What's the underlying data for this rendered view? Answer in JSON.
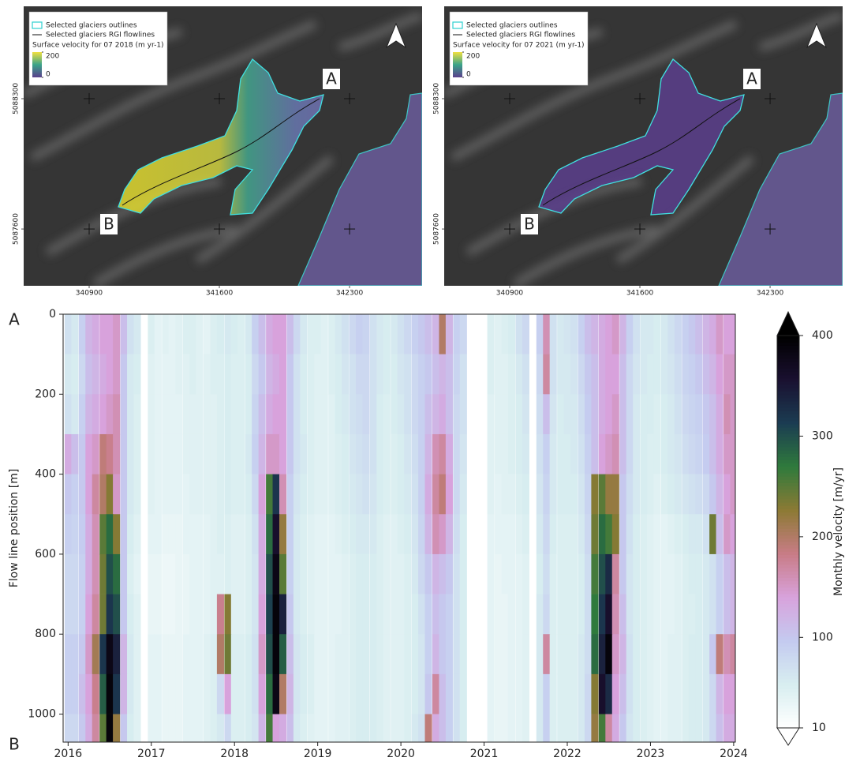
{
  "maps": [
    {
      "legend": [
        "Selected glaciers outlines",
        "Selected glaciers RGI flowlines"
      ],
      "scale_title": "Surface velocity for 07 2018 (m yr-1)",
      "scale_lim": [
        0,
        200
      ],
      "points": [
        "A",
        "B"
      ],
      "xlim": [
        340548,
        342690
      ],
      "ylim": [
        5087295,
        5088796
      ],
      "xticks": [
        340900,
        341600,
        342300
      ],
      "yticks": [
        5088300,
        5087600
      ]
    },
    {
      "legend": [
        "Selected glaciers outlines",
        "Selected glaciers RGI flowlines"
      ],
      "scale_title": "Surface velocity for 07 2021 (m yr-1)",
      "scale_lim": [
        0,
        200
      ],
      "points": [
        "A",
        "B"
      ],
      "xlim": [
        340548,
        342690
      ],
      "ylim": [
        5087295,
        5088796
      ],
      "xticks": [
        340900,
        341600,
        342300
      ],
      "yticks": [
        5088300,
        5087600
      ]
    }
  ],
  "chart_data": {
    "type": "heatmap",
    "ylabel": "Flow line position [m]",
    "annotations": [
      "A",
      "B"
    ],
    "xlim": [
      2015.94,
      2024.02
    ],
    "ylim": [
      0,
      1070
    ],
    "invert_y": true,
    "xticks": [
      2016,
      2017,
      2018,
      2019,
      2020,
      2021,
      2022,
      2023,
      2024
    ],
    "yticks": [
      0,
      200,
      400,
      600,
      800,
      1000
    ],
    "x": [
      2016,
      2016.08,
      2016.17,
      2016.25,
      2016.33,
      2016.42,
      2016.5,
      2016.58,
      2016.67,
      2016.75,
      2016.83,
      2016.92,
      2017,
      2017.08,
      2017.17,
      2017.25,
      2017.33,
      2017.42,
      2017.5,
      2017.58,
      2017.67,
      2017.75,
      2017.83,
      2017.92,
      2018,
      2018.08,
      2018.17,
      2018.25,
      2018.33,
      2018.42,
      2018.5,
      2018.58,
      2018.67,
      2018.75,
      2018.83,
      2018.92,
      2019,
      2019.08,
      2019.17,
      2019.25,
      2019.33,
      2019.42,
      2019.5,
      2019.58,
      2019.67,
      2019.75,
      2019.83,
      2019.92,
      2020,
      2020.08,
      2020.17,
      2020.25,
      2020.33,
      2020.42,
      2020.5,
      2020.58,
      2020.67,
      2020.75,
      2020.83,
      2020.92,
      2021,
      2021.08,
      2021.17,
      2021.25,
      2021.33,
      2021.42,
      2021.5,
      2021.58,
      2021.67,
      2021.75,
      2021.83,
      2021.92,
      2022,
      2022.08,
      2022.17,
      2022.25,
      2022.33,
      2022.42,
      2022.5,
      2022.58,
      2022.67,
      2022.75,
      2022.83,
      2022.92,
      2023,
      2023.08,
      2023.17,
      2023.25,
      2023.33,
      2023.42,
      2023.5,
      2023.58,
      2023.67,
      2023.75,
      2023.83,
      2023.92,
      2024,
      2024.08
    ],
    "y": [
      50,
      150,
      250,
      350,
      450,
      550,
      650,
      750,
      850,
      950,
      1050
    ],
    "z": [
      [
        70,
        60,
        90,
        120,
        130,
        140,
        140,
        150,
        110,
        70,
        60,
        null,
        50,
        40,
        45,
        40,
        45,
        50,
        50,
        45,
        40,
        50,
        55,
        60,
        55,
        50,
        60,
        90,
        110,
        130,
        140,
        140,
        110,
        80,
        60,
        50,
        50,
        45,
        50,
        60,
        70,
        80,
        90,
        85,
        70,
        60,
        55,
        60,
        70,
        80,
        90,
        100,
        110,
        120,
        200,
        120,
        90,
        80,
        null,
        null,
        null,
        50,
        45,
        50,
        55,
        70,
        80,
        null,
        90,
        160,
        70,
        60,
        65,
        70,
        90,
        110,
        120,
        130,
        140,
        150,
        120,
        90,
        70,
        60,
        60,
        55,
        60,
        70,
        80,
        90,
        100,
        110,
        120,
        130,
        150,
        140,
        140,
        120
      ],
      [
        60,
        55,
        80,
        110,
        120,
        130,
        140,
        150,
        100,
        60,
        55,
        null,
        45,
        40,
        40,
        40,
        45,
        45,
        50,
        45,
        45,
        50,
        50,
        55,
        50,
        50,
        55,
        80,
        100,
        120,
        130,
        140,
        100,
        70,
        55,
        50,
        45,
        45,
        50,
        55,
        65,
        70,
        80,
        80,
        70,
        60,
        55,
        55,
        65,
        70,
        80,
        90,
        100,
        110,
        120,
        110,
        85,
        70,
        null,
        null,
        null,
        50,
        45,
        45,
        50,
        60,
        70,
        null,
        80,
        170,
        70,
        60,
        60,
        65,
        80,
        100,
        110,
        130,
        140,
        140,
        110,
        80,
        65,
        60,
        55,
        55,
        60,
        65,
        75,
        85,
        90,
        100,
        110,
        120,
        140,
        150,
        150,
        130
      ],
      [
        70,
        60,
        90,
        120,
        130,
        140,
        150,
        160,
        100,
        60,
        50,
        null,
        45,
        40,
        40,
        40,
        40,
        45,
        45,
        45,
        45,
        45,
        50,
        55,
        50,
        50,
        55,
        85,
        110,
        130,
        140,
        140,
        100,
        70,
        55,
        50,
        45,
        45,
        45,
        55,
        60,
        70,
        75,
        80,
        70,
        55,
        50,
        55,
        60,
        70,
        80,
        90,
        110,
        120,
        130,
        110,
        80,
        70,
        null,
        null,
        null,
        45,
        45,
        45,
        50,
        55,
        65,
        null,
        75,
        110,
        65,
        55,
        60,
        60,
        75,
        95,
        110,
        130,
        140,
        150,
        110,
        80,
        60,
        55,
        55,
        50,
        55,
        60,
        70,
        80,
        85,
        90,
        100,
        110,
        130,
        160,
        150,
        140
      ],
      [
        130,
        110,
        100,
        140,
        150,
        190,
        180,
        160,
        100,
        60,
        50,
        null,
        45,
        40,
        40,
        40,
        40,
        45,
        45,
        45,
        45,
        45,
        50,
        55,
        50,
        50,
        60,
        90,
        120,
        150,
        150,
        140,
        100,
        70,
        60,
        50,
        45,
        45,
        45,
        50,
        55,
        65,
        70,
        75,
        70,
        55,
        50,
        50,
        55,
        65,
        75,
        90,
        120,
        160,
        170,
        130,
        80,
        65,
        null,
        null,
        null,
        45,
        45,
        45,
        50,
        55,
        60,
        null,
        70,
        90,
        60,
        55,
        55,
        60,
        70,
        90,
        110,
        140,
        150,
        160,
        110,
        80,
        60,
        55,
        50,
        50,
        55,
        60,
        65,
        75,
        80,
        85,
        95,
        110,
        130,
        150,
        150,
        140
      ],
      [
        100,
        90,
        100,
        140,
        170,
        200,
        230,
        150,
        100,
        60,
        50,
        null,
        45,
        40,
        40,
        40,
        40,
        40,
        45,
        45,
        45,
        45,
        50,
        55,
        50,
        50,
        55,
        80,
        140,
        260,
        320,
        160,
        90,
        65,
        55,
        50,
        45,
        45,
        45,
        50,
        55,
        60,
        65,
        70,
        65,
        55,
        50,
        50,
        55,
        60,
        70,
        90,
        130,
        170,
        190,
        140,
        80,
        60,
        null,
        null,
        null,
        45,
        40,
        45,
        45,
        50,
        55,
        null,
        65,
        85,
        60,
        55,
        55,
        55,
        65,
        85,
        230,
        250,
        220,
        220,
        100,
        75,
        60,
        55,
        50,
        45,
        50,
        55,
        60,
        65,
        70,
        75,
        80,
        100,
        120,
        140,
        150,
        130
      ],
      [
        90,
        85,
        95,
        130,
        160,
        250,
        280,
        230,
        100,
        55,
        45,
        null,
        40,
        40,
        35,
        35,
        35,
        40,
        40,
        40,
        40,
        45,
        50,
        50,
        45,
        45,
        50,
        70,
        130,
        280,
        360,
        220,
        90,
        60,
        50,
        45,
        40,
        40,
        40,
        45,
        50,
        55,
        60,
        60,
        60,
        50,
        45,
        45,
        50,
        55,
        65,
        85,
        120,
        160,
        150,
        120,
        75,
        55,
        null,
        null,
        null,
        40,
        40,
        40,
        40,
        45,
        50,
        null,
        60,
        80,
        55,
        50,
        50,
        50,
        60,
        80,
        240,
        280,
        260,
        230,
        100,
        70,
        55,
        50,
        45,
        40,
        40,
        45,
        50,
        55,
        60,
        60,
        70,
        240,
        110,
        150,
        140,
        120
      ],
      [
        80,
        80,
        90,
        130,
        160,
        240,
        300,
        280,
        100,
        50,
        40,
        null,
        35,
        35,
        30,
        30,
        35,
        35,
        40,
        40,
        40,
        45,
        45,
        50,
        45,
        45,
        50,
        65,
        130,
        300,
        380,
        250,
        90,
        60,
        50,
        45,
        40,
        40,
        40,
        40,
        45,
        50,
        55,
        55,
        55,
        50,
        45,
        45,
        45,
        50,
        60,
        80,
        100,
        120,
        110,
        100,
        70,
        55,
        null,
        null,
        null,
        40,
        35,
        40,
        40,
        40,
        45,
        null,
        55,
        75,
        50,
        50,
        50,
        50,
        55,
        75,
        260,
        300,
        330,
        170,
        100,
        65,
        55,
        50,
        45,
        40,
        40,
        40,
        45,
        50,
        55,
        55,
        60,
        70,
        90,
        110,
        120,
        110
      ],
      [
        80,
        80,
        90,
        140,
        170,
        240,
        320,
        300,
        100,
        55,
        45,
        null,
        35,
        35,
        30,
        30,
        35,
        35,
        40,
        40,
        40,
        45,
        180,
        230,
        45,
        45,
        50,
        65,
        140,
        310,
        390,
        340,
        100,
        60,
        50,
        45,
        40,
        40,
        40,
        40,
        45,
        50,
        55,
        55,
        55,
        50,
        45,
        45,
        45,
        50,
        55,
        70,
        90,
        110,
        100,
        90,
        70,
        55,
        null,
        null,
        null,
        40,
        35,
        35,
        40,
        40,
        45,
        null,
        60,
        80,
        50,
        50,
        50,
        50,
        55,
        75,
        270,
        320,
        360,
        160,
        110,
        65,
        55,
        50,
        45,
        40,
        40,
        40,
        45,
        50,
        50,
        55,
        60,
        70,
        90,
        110,
        120,
        110
      ],
      [
        90,
        90,
        100,
        150,
        210,
        320,
        380,
        340,
        120,
        60,
        45,
        null,
        40,
        40,
        35,
        35,
        35,
        40,
        40,
        40,
        45,
        50,
        200,
        240,
        50,
        50,
        55,
        70,
        150,
        300,
        390,
        290,
        110,
        65,
        55,
        50,
        40,
        40,
        40,
        45,
        45,
        50,
        55,
        55,
        55,
        50,
        45,
        45,
        45,
        50,
        55,
        65,
        90,
        120,
        100,
        90,
        70,
        55,
        null,
        null,
        null,
        40,
        35,
        35,
        40,
        40,
        45,
        null,
        60,
        170,
        50,
        50,
        50,
        50,
        60,
        75,
        280,
        340,
        390,
        150,
        120,
        70,
        55,
        50,
        45,
        40,
        40,
        45,
        45,
        50,
        55,
        55,
        60,
        100,
        190,
        160,
        170,
        140
      ],
      [
        90,
        90,
        110,
        140,
        180,
        290,
        390,
        320,
        120,
        60,
        45,
        null,
        40,
        40,
        35,
        35,
        35,
        40,
        40,
        40,
        45,
        50,
        80,
        140,
        50,
        50,
        55,
        70,
        140,
        280,
        380,
        200,
        120,
        65,
        55,
        50,
        40,
        40,
        40,
        45,
        45,
        50,
        55,
        55,
        55,
        50,
        45,
        45,
        45,
        50,
        55,
        65,
        100,
        170,
        110,
        90,
        70,
        55,
        null,
        null,
        null,
        40,
        35,
        35,
        40,
        40,
        45,
        null,
        60,
        90,
        50,
        50,
        50,
        50,
        60,
        80,
        230,
        360,
        330,
        140,
        110,
        70,
        55,
        50,
        45,
        40,
        40,
        45,
        45,
        50,
        55,
        55,
        60,
        80,
        120,
        140,
        140,
        120
      ],
      [
        80,
        80,
        100,
        130,
        170,
        250,
        390,
        220,
        100,
        55,
        45,
        null,
        40,
        40,
        35,
        35,
        35,
        40,
        40,
        40,
        45,
        50,
        60,
        80,
        50,
        50,
        55,
        65,
        120,
        260,
        140,
        130,
        110,
        60,
        50,
        45,
        40,
        40,
        40,
        45,
        45,
        50,
        55,
        55,
        55,
        50,
        45,
        45,
        45,
        50,
        60,
        70,
        190,
        130,
        110,
        90,
        70,
        55,
        null,
        null,
        null,
        40,
        35,
        35,
        40,
        40,
        45,
        null,
        60,
        90,
        50,
        50,
        50,
        50,
        60,
        80,
        220,
        260,
        170,
        130,
        100,
        65,
        55,
        50,
        45,
        40,
        40,
        45,
        45,
        50,
        55,
        55,
        60,
        80,
        110,
        130,
        130,
        110
      ]
    ],
    "colorbar": {
      "label": "Monthly velocity [m/yr]",
      "lim": [
        10,
        400
      ],
      "ticks": [
        10,
        100,
        200,
        300,
        400
      ],
      "extend": "both",
      "colors": [
        "#ffffff",
        "#d8eef0",
        "#c4cbf0",
        "#d8a2dc",
        "#c87c86",
        "#8c7a34",
        "#2f7a3c",
        "#1b3c52",
        "#1a1030",
        "#000000"
      ]
    }
  }
}
